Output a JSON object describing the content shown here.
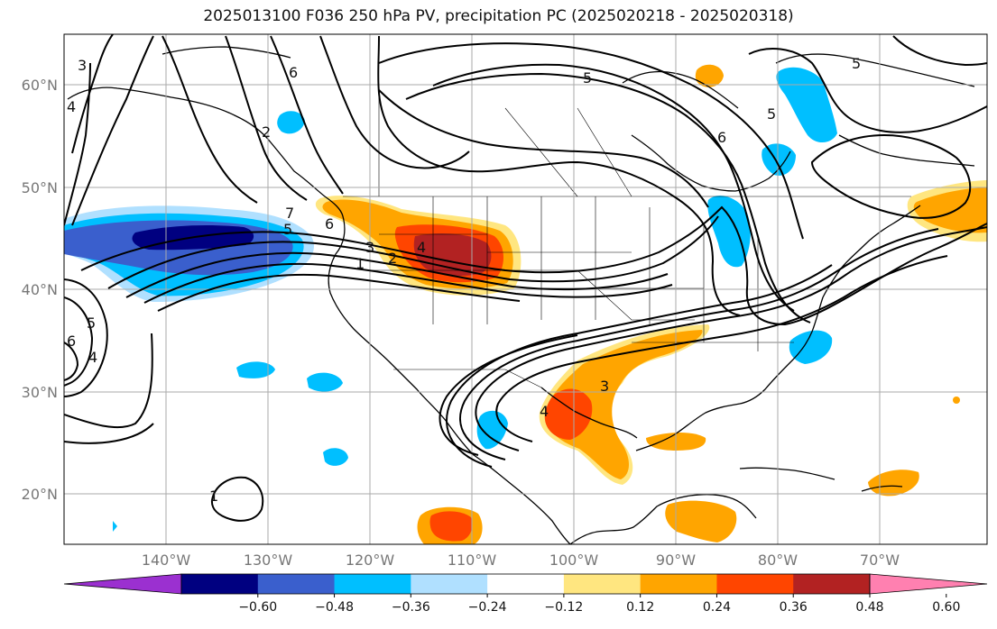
{
  "title": "2025013100 F036 250 hPa PV, precipitation PC (2025020218 - 2025020318)",
  "lat_labels": [
    "60°N",
    "50°N",
    "40°N",
    "30°N",
    "20°N"
  ],
  "lon_labels": [
    "140°W",
    "130°W",
    "120°W",
    "110°W",
    "100°W",
    "90°W",
    "80°W",
    "70°W"
  ],
  "colorbar": {
    "ticks": [
      "−0.60",
      "−0.48",
      "−0.36",
      "−0.24",
      "−0.12",
      "0.12",
      "0.24",
      "0.36",
      "0.48",
      "0.60"
    ],
    "colors": [
      "#9b30d0",
      "#000080",
      "#3a5fcd",
      "#00bfff",
      "#b0e0ff",
      "#ffffff",
      "#ffe680",
      "#ffa500",
      "#ff4500",
      "#b22222",
      "#ff80b0"
    ]
  },
  "pv_contour_labels": [
    "7",
    "6",
    "5",
    "4",
    "3",
    "2",
    "1",
    "3",
    "4",
    "5",
    "6",
    "5",
    "6",
    "4",
    "4",
    "5",
    "6",
    "5",
    "1",
    "3",
    "2"
  ]
}
